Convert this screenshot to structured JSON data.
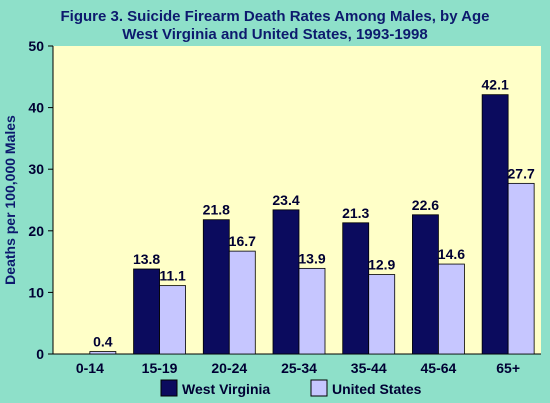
{
  "title_line1": "Figure 3. Suicide Firearm Death Rates Among Males, by Age",
  "title_line2": "West Virginia and United States, 1993-1998",
  "colors": {
    "background": "#8ee0c9",
    "plot_area": "#ffffc8",
    "west_virginia": "#0b0b5e",
    "united_states": "#c6c6ff",
    "text": "#000033"
  },
  "chart_data": {
    "type": "bar",
    "title": "Figure 3. Suicide Firearm Death Rates Among Males, by Age\nWest Virginia and United States, 1993-1998",
    "xlabel": "",
    "ylabel": "Deaths per 100,000 Males",
    "ylim": [
      0,
      50
    ],
    "yticks": [
      "0",
      "10",
      "20",
      "30",
      "40",
      "50"
    ],
    "categories": [
      "0-14",
      "15-19",
      "20-24",
      "25-34",
      "35-44",
      "45-64",
      "65+"
    ],
    "series": [
      {
        "name": "West Virginia",
        "values": [
          0,
          13.8,
          21.8,
          23.4,
          21.3,
          22.6,
          42.1
        ],
        "labels": [
          "",
          "13.8",
          "21.8",
          "23.4",
          "21.3",
          "22.6",
          "42.1"
        ]
      },
      {
        "name": "United States",
        "values": [
          0.4,
          11.1,
          16.7,
          13.9,
          12.9,
          14.6,
          27.7
        ],
        "labels": [
          "0.4",
          "11.1",
          "16.7",
          "13.9",
          "12.9",
          "14.6",
          "27.7"
        ]
      }
    ],
    "grid": false,
    "legend": "bottom"
  }
}
